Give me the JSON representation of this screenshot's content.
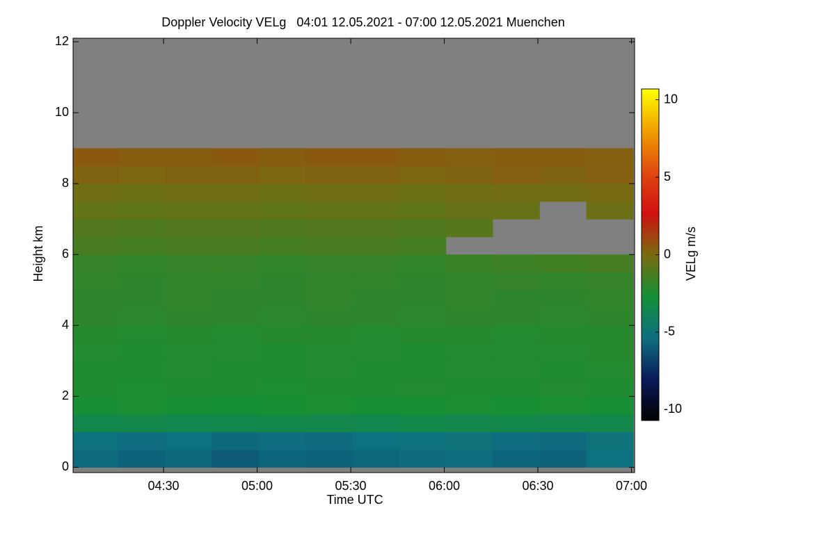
{
  "chart_data": {
    "type": "heatmap",
    "title": "Doppler Velocity VELg   04:01 12.05.2021 - 07:00 12.05.2021 Muenchen",
    "x_label": "Time UTC",
    "y_label": "Height km",
    "colorbar_label": "VELg m/s",
    "xlim": [
      241,
      421
    ],
    "xticks": [
      {
        "value": 270,
        "label": "04:30"
      },
      {
        "value": 300,
        "label": "05:00"
      },
      {
        "value": 330,
        "label": "05:30"
      },
      {
        "value": 360,
        "label": "06:00"
      },
      {
        "value": 390,
        "label": "06:30"
      },
      {
        "value": 420,
        "label": "07:00"
      }
    ],
    "ylim": [
      -0.15,
      12.1
    ],
    "yticks": [
      0,
      2,
      4,
      6,
      8,
      10,
      12
    ],
    "clim": [
      -10.7,
      10.7
    ],
    "cticks": [
      -10,
      -5,
      0,
      5,
      10
    ],
    "colormap": [
      "#000000",
      "#0a1a5a",
      "#0e7080",
      "#159035",
      "#7a6a10",
      "#d01010",
      "#e04a10",
      "#f0a000",
      "#ffff00"
    ],
    "nan_color": "#808080",
    "x": [
      248,
      263,
      278,
      293,
      308,
      323,
      338,
      353,
      368,
      383,
      398,
      413
    ],
    "y": [
      0.25,
      0.75,
      1.25,
      1.75,
      2.25,
      2.75,
      3.25,
      3.75,
      4.25,
      4.75,
      5.25,
      5.75,
      6.25,
      6.75,
      7.25,
      7.75,
      8.25,
      8.75,
      9.25,
      9.75,
      10.25,
      10.75,
      11.25,
      11.75
    ],
    "values": [
      [
        -5.5,
        -5.8,
        -5.6,
        -6,
        -5.7,
        -5.8,
        -5.6,
        -5.5,
        -5.4,
        -5.7,
        -5.8,
        -5.3
      ],
      [
        -5.2,
        -5.4,
        -5.3,
        -5.6,
        -5.4,
        -5.5,
        -5.3,
        -5.2,
        -5.1,
        -5.4,
        -5.5,
        -5.1
      ],
      [
        -3.5,
        -3.4,
        -3.6,
        -3.5,
        -3.4,
        -3.5,
        -3.6,
        -3.4,
        -3.5,
        -3.4,
        -3.5,
        -3.5
      ],
      [
        -2.6,
        -2.5,
        -2.6,
        -2.7,
        -2.6,
        -2.5,
        -2.6,
        -2.6,
        -2.5,
        -2.6,
        -2.5,
        -2.6
      ],
      [
        -2.4,
        -2.5,
        -2.4,
        -2.4,
        -2.5,
        -2.4,
        -2.4,
        -2.3,
        -2.4,
        -2.4,
        -2.3,
        -2.4
      ],
      [
        -2.4,
        -2.4,
        -2.3,
        -2.4,
        -2.4,
        -2.3,
        -2.4,
        -2.4,
        -2.3,
        -2.3,
        -2.4,
        -2.3
      ],
      [
        -2.3,
        -2.4,
        -2.3,
        -2.3,
        -2.4,
        -2.3,
        -2.3,
        -2.4,
        -2.3,
        -2.3,
        -2.3,
        -2.2
      ],
      [
        -2.2,
        -2.3,
        -2.2,
        -2.3,
        -2.2,
        -2.2,
        -2.3,
        -2.2,
        -2.2,
        -2.3,
        -2.2,
        -2.2
      ],
      [
        -2,
        -2.1,
        -2,
        -2,
        -2.1,
        -2,
        -2,
        -2.1,
        -2,
        -2,
        -2.1,
        -2
      ],
      [
        -2,
        -2,
        -1.9,
        -2,
        -2,
        -1.9,
        -2,
        -2,
        -1.9,
        -2,
        -2,
        -1.9
      ],
      [
        -1.9,
        -2,
        -1.9,
        -1.9,
        -2,
        -1.9,
        -1.9,
        -2,
        -1.9,
        -1.8,
        -1.9,
        -1.8
      ],
      [
        -1.8,
        -1.9,
        -1.8,
        -1.8,
        -1.9,
        -1.8,
        -1.8,
        -1.9,
        -1.7,
        -1.6,
        -1.5,
        -1.4
      ],
      [
        -1.3,
        -1.4,
        -1.3,
        -1.3,
        -1.4,
        -1.3,
        -1.3,
        -1.4,
        null,
        null,
        null,
        null
      ],
      [
        -1,
        -1.1,
        -1,
        -1,
        -1.1,
        -1,
        -1,
        -1.1,
        -0.9,
        null,
        null,
        null
      ],
      [
        -0.6,
        -0.7,
        -0.6,
        -0.6,
        -0.7,
        -0.6,
        -0.6,
        -0.7,
        -0.5,
        -0.5,
        null,
        -0.4
      ],
      [
        -0.3,
        -0.4,
        -0.3,
        -0.3,
        -0.4,
        -0.3,
        -0.3,
        -0.4,
        -0.3,
        -0.2,
        -0.2,
        -0.1
      ],
      [
        0.2,
        0.1,
        0.2,
        0.2,
        0.1,
        0.2,
        0.2,
        0.1,
        0.2,
        0.3,
        0.2,
        0.3
      ],
      [
        0.5,
        0.4,
        0.4,
        0.5,
        0.4,
        0.5,
        0.5,
        0.4,
        0.3,
        0.4,
        0.4,
        0.3
      ],
      [
        null,
        null,
        null,
        null,
        null,
        null,
        null,
        null,
        null,
        null,
        null,
        null
      ],
      [
        null,
        null,
        null,
        null,
        null,
        null,
        null,
        null,
        null,
        null,
        null,
        null
      ],
      [
        null,
        null,
        null,
        null,
        null,
        null,
        null,
        null,
        null,
        null,
        null,
        null
      ],
      [
        null,
        null,
        null,
        null,
        null,
        null,
        null,
        null,
        null,
        null,
        null,
        null
      ],
      [
        null,
        null,
        null,
        null,
        null,
        null,
        null,
        null,
        null,
        null,
        null,
        null
      ],
      [
        null,
        null,
        null,
        null,
        null,
        null,
        null,
        null,
        null,
        null,
        null,
        null
      ]
    ]
  }
}
